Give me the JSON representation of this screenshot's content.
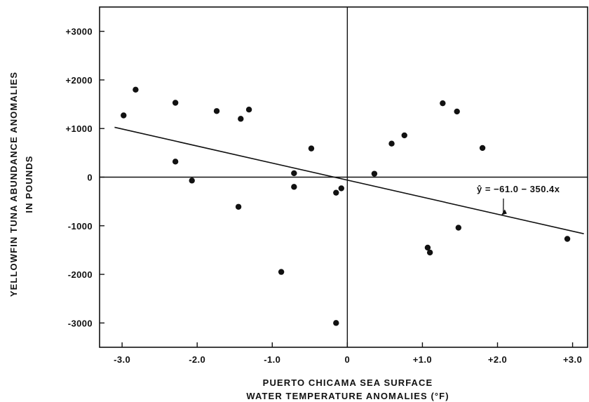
{
  "chart_data": {
    "type": "scatter",
    "title": "",
    "xlabel_lines": [
      "PUERTO CHICAMA SEA SURFACE",
      "WATER TEMPERATURE ANOMALIES (°F)"
    ],
    "ylabel_lines": [
      "YELLOWFIN TUNA ABUNDANCE ANOMALIES",
      "IN POUNDS"
    ],
    "xlim": [
      -3.3,
      3.2
    ],
    "ylim": [
      -3500,
      3500
    ],
    "x_ticks": [
      -3.0,
      -2.0,
      -1.0,
      0,
      1.0,
      2.0,
      3.0
    ],
    "x_tick_labels": [
      "-3.0",
      "-2.0",
      "-1.0",
      "0",
      "+1.0",
      "+2.0",
      "+3.0"
    ],
    "y_ticks": [
      3000,
      2000,
      1000,
      0,
      -1000,
      -2000,
      -3000
    ],
    "y_tick_labels": [
      "+3000",
      "+2000",
      "+1000",
      "0",
      "-1000",
      "-2000",
      "-3000"
    ],
    "grid": false,
    "zero_lines": true,
    "points": [
      {
        "x": -2.98,
        "y": 1270
      },
      {
        "x": -2.82,
        "y": 1800
      },
      {
        "x": -2.29,
        "y": 1530
      },
      {
        "x": -2.29,
        "y": 320
      },
      {
        "x": -2.07,
        "y": -70
      },
      {
        "x": -1.74,
        "y": 1360
      },
      {
        "x": -1.45,
        "y": -610
      },
      {
        "x": -1.42,
        "y": 1200
      },
      {
        "x": -1.31,
        "y": 1390
      },
      {
        "x": -0.88,
        "y": -1950
      },
      {
        "x": -0.71,
        "y": 80
      },
      {
        "x": -0.71,
        "y": -200
      },
      {
        "x": -0.48,
        "y": 590
      },
      {
        "x": -0.15,
        "y": -320
      },
      {
        "x": -0.15,
        "y": -3000
      },
      {
        "x": -0.08,
        "y": -230
      },
      {
        "x": 0.36,
        "y": 70
      },
      {
        "x": 0.59,
        "y": 690
      },
      {
        "x": 0.76,
        "y": 860
      },
      {
        "x": 1.07,
        "y": -1450
      },
      {
        "x": 1.1,
        "y": -1550
      },
      {
        "x": 1.27,
        "y": 1520
      },
      {
        "x": 1.46,
        "y": 1350
      },
      {
        "x": 1.48,
        "y": -1040
      },
      {
        "x": 1.8,
        "y": 600
      },
      {
        "x": 2.93,
        "y": -1270
      }
    ],
    "regression": {
      "intercept": -61.0,
      "slope": -350.4,
      "x_range": [
        -3.1,
        3.15
      ],
      "label": "ŷ = −61.0 − 350.4x"
    }
  }
}
